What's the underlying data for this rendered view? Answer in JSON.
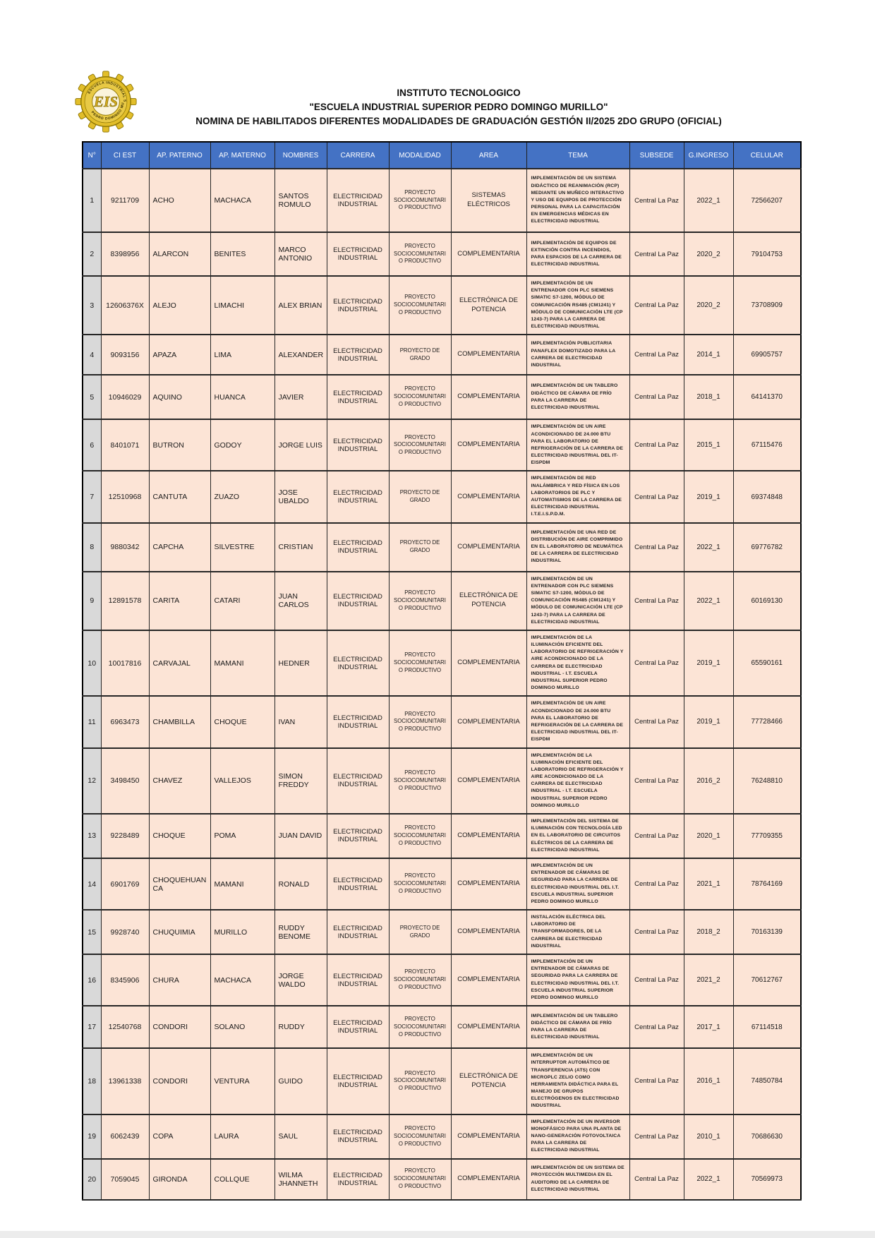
{
  "header": {
    "line1": "INSTITUTO TECNOLOGICO",
    "line2": "\"ESCUELA INDUSTRIAL SUPERIOR PEDRO DOMINGO MURILLO\"",
    "line3": "NOMINA DE HABILITADOS DIFERENTES MODALIDADES DE GRADUACIÓN GESTIÓN II/2025  2DO GRUPO (OFICIAL)",
    "logo": {
      "ring_text_top": "ESCUELA INDUSTRIAL SUPERIOR",
      "ring_text_bottom": "PEDRO DOMINGO MURILLO",
      "monogram": "EIS"
    }
  },
  "colors": {
    "header_bg": "#4472C4",
    "row_bg": "#FCE4D6",
    "num_col_bg": "#D9D9D9",
    "logo_gold": "#E2BE2A"
  },
  "table": {
    "columns": [
      "N°",
      "CI EST",
      "AP. PATERNO",
      "AP. MATERNO",
      "NOMBRES",
      "CARRERA",
      "MODALIDAD",
      "AREA",
      "TEMA",
      "SUBSEDE",
      "G.INGRESO",
      "CELULAR"
    ],
    "rows": [
      {
        "n": "1",
        "ci": "9211709",
        "paterno": "ACHO",
        "materno": "MACHACA",
        "nombres": "SANTOS ROMULO",
        "carrera": "ELECTRICIDAD INDUSTRIAL",
        "modalidad": "PROYECTO SOCIOCOMUNITARIO PRODUCTIVO",
        "area": "SISTEMAS ELÉCTRICOS",
        "tema": "IMPLEMENTACIÓN DE UN SISTEMA DIDÁCTICO DE REANIMACIÓN (RCP) MEDIANTE UN MUÑECO INTERACTIVO Y USO DE EQUIPOS DE PROTECCIÓN PERSONAL PARA LA CAPACITACIÓN EN EMERGENCIAS MÉDICAS EN ELECTRICIDAD INDUSTRIAL",
        "subsede": "Central La Paz",
        "ingreso": "2022_1",
        "celular": "72566207"
      },
      {
        "n": "2",
        "ci": "8398956",
        "paterno": "ALARCON",
        "materno": "BENITES",
        "nombres": "MARCO ANTONIO",
        "carrera": "ELECTRICIDAD INDUSTRIAL",
        "modalidad": "PROYECTO SOCIOCOMUNITARIO PRODUCTIVO",
        "area": "COMPLEMENTARIA",
        "tema": "IMPLEMENTACIÓN DE EQUIPOS DE EXTINCIÓN CONTRA INCENDIOS, PARA ESPACIOS DE LA CARRERA DE ELECTRICIDAD INDUSTRIAL",
        "subsede": "Central La Paz",
        "ingreso": "2020_2",
        "celular": "79104753"
      },
      {
        "n": "3",
        "ci": "12606376X",
        "paterno": "ALEJO",
        "materno": "LIMACHI",
        "nombres": "ALEX BRIAN",
        "carrera": "ELECTRICIDAD INDUSTRIAL",
        "modalidad": "PROYECTO SOCIOCOMUNITARIO PRODUCTIVO",
        "area": "ELECTRÓNICA DE POTENCIA",
        "tema": "IMPLEMENTACIÓN DE UN ENTRENADOR CON PLC SIEMENS SIMATIC S7-1200, MÓDULO DE COMUNICACIÓN RS485 (CM1241) Y MÓDULO DE COMUNICACIÓN LTE (CP 1243-7) PARA LA CARRERA DE ELECTRICIDAD INDUSTRIAL",
        "subsede": "Central La Paz",
        "ingreso": "2020_2",
        "celular": "73708909"
      },
      {
        "n": "4",
        "ci": "9093156",
        "paterno": "APAZA",
        "materno": "LIMA",
        "nombres": "ALEXANDER",
        "carrera": "ELECTRICIDAD INDUSTRIAL",
        "modalidad": "PROYECTO DE GRADO",
        "area": "COMPLEMENTARIA",
        "tema": "IMPLEMENTACIÓN PUBLICITARIA PANAFLEX DOMOTIZADO PARA LA CARRERA DE ELECTRICIDAD INDUSTRIAL",
        "subsede": "Central La Paz",
        "ingreso": "2014_1",
        "celular": "69905757"
      },
      {
        "n": "5",
        "ci": "10946029",
        "paterno": "AQUINO",
        "materno": "HUANCA",
        "nombres": "JAVIER",
        "carrera": "ELECTRICIDAD INDUSTRIAL",
        "modalidad": "PROYECTO SOCIOCOMUNITARIO PRODUCTIVO",
        "area": "COMPLEMENTARIA",
        "tema": "IMPLEMENTACIÓN DE UN TABLERO DIDÁCTICO DE CÁMARA DE FRÍO PARA LA CARRERA DE ELECTRICIDAD INDUSTRIAL",
        "subsede": "Central La Paz",
        "ingreso": "2018_1",
        "celular": "64141370"
      },
      {
        "n": "6",
        "ci": "8401071",
        "paterno": "BUTRON",
        "materno": "GODOY",
        "nombres": "JORGE LUIS",
        "carrera": "ELECTRICIDAD INDUSTRIAL",
        "modalidad": "PROYECTO SOCIOCOMUNITARIO PRODUCTIVO",
        "area": "COMPLEMENTARIA",
        "tema": "IMPLEMENTACIÓN DE UN AIRE ACONDICIONADO DE 24.000 BTU PARA EL LABORATORIO DE REFRIGERACIÓN DE LA CARRERA DE ELECTRICIDAD INDUSTRIAL DEL IT- EISPDM",
        "subsede": "Central La Paz",
        "ingreso": "2015_1",
        "celular": "67115476"
      },
      {
        "n": "7",
        "ci": "12510968",
        "paterno": "CANTUTA",
        "materno": "ZUAZO",
        "nombres": "JOSE UBALDO",
        "carrera": "ELECTRICIDAD INDUSTRIAL",
        "modalidad": "PROYECTO DE GRADO",
        "area": "COMPLEMENTARIA",
        "tema": "IMPLEMENTACIÓN DE RED INALÁMBRICA Y RED FÍSICA EN LOS LABORATORIOS DE PLC Y AUTOMATISMOS DE LA CARRERA DE ELECTRICIDAD INDUSTRIAL I.T.E.I.S.P.D.M.",
        "subsede": "Central La Paz",
        "ingreso": "2019_1",
        "celular": "69374848"
      },
      {
        "n": "8",
        "ci": "9880342",
        "paterno": "CAPCHA",
        "materno": "SILVESTRE",
        "nombres": "CRISTIAN",
        "carrera": "ELECTRICIDAD INDUSTRIAL",
        "modalidad": "PROYECTO DE GRADO",
        "area": "COMPLEMENTARIA",
        "tema": "IMPLEMENTACIÓN DE UNA RED DE DISTRIBUCIÓN DE AIRE COMPRIMIDO EN EL LABORATORIO DE NEUMÁTICA DE LA CARRERA DE ELECTRICIDAD INDUSTRIAL",
        "subsede": "Central La Paz",
        "ingreso": "2022_1",
        "celular": "69776782"
      },
      {
        "n": "9",
        "ci": "12891578",
        "paterno": "CARITA",
        "materno": "CATARI",
        "nombres": "JUAN CARLOS",
        "carrera": "ELECTRICIDAD INDUSTRIAL",
        "modalidad": "PROYECTO SOCIOCOMUNITARIO PRODUCTIVO",
        "area": "ELECTRÓNICA DE POTENCIA",
        "tema": "IMPLEMENTACIÓN DE UN ENTRENADOR CON PLC SIEMENS SIMATIC S7-1200, MÓDULO DE COMUNICACIÓN RS485 (CM1241) Y MÓDULO DE COMUNICACIÓN LTE (CP 1243-7) PARA LA CARRERA DE ELECTRICIDAD INDUSTRIAL",
        "subsede": "Central La Paz",
        "ingreso": "2022_1",
        "celular": "60169130"
      },
      {
        "n": "10",
        "ci": "10017816",
        "paterno": "CARVAJAL",
        "materno": "MAMANI",
        "nombres": "HEDNER",
        "carrera": "ELECTRICIDAD INDUSTRIAL",
        "modalidad": "PROYECTO SOCIOCOMUNITARIO PRODUCTIVO",
        "area": "COMPLEMENTARIA",
        "tema": "IMPLEMENTACIÓN DE LA ILUMINACIÓN EFICIENTE DEL LABORATORIO DE REFRIGERACIÓN Y AIRE ACONDICIONADO DE LA CARRERA DE ELECTRICIDAD INDUSTRIAL - I.T. ESCUELA INDUSTRIAL SUPERIOR PEDRO DOMINGO MURILLO",
        "subsede": "Central La Paz",
        "ingreso": "2019_1",
        "celular": "65590161"
      },
      {
        "n": "11",
        "ci": "6963473",
        "paterno": "CHAMBILLA",
        "materno": "CHOQUE",
        "nombres": "IVAN",
        "carrera": "ELECTRICIDAD INDUSTRIAL",
        "modalidad": "PROYECTO SOCIOCOMUNITARIO PRODUCTIVO",
        "area": "COMPLEMENTARIA",
        "tema": "IMPLEMENTACIÓN DE UN AIRE ACONDICIONADO DE 24.000 BTU PARA EL LABORATORIO DE REFRIGERACIÓN DE LA CARRERA DE ELECTRICIDAD INDUSTRIAL DEL IT- EISPDM",
        "subsede": "Central La Paz",
        "ingreso": "2019_1",
        "celular": "77728466"
      },
      {
        "n": "12",
        "ci": "3498450",
        "paterno": "CHAVEZ",
        "materno": "VALLEJOS",
        "nombres": "SIMON FREDDY",
        "carrera": "ELECTRICIDAD INDUSTRIAL",
        "modalidad": "PROYECTO SOCIOCOMUNITARIO PRODUCTIVO",
        "area": "COMPLEMENTARIA",
        "tema": "IMPLEMENTACIÓN DE LA ILUMINACIÓN EFICIENTE DEL LABORATORIO DE REFRIGERACIÓN Y AIRE ACONDICIONADO DE LA CARRERA DE ELECTRICIDAD INDUSTRIAL - I.T. ESCUELA INDUSTRIAL SUPERIOR PEDRO DOMINGO MURILLO",
        "subsede": "Central La Paz",
        "ingreso": "2016_2",
        "celular": "76248810"
      },
      {
        "n": "13",
        "ci": "9228489",
        "paterno": "CHOQUE",
        "materno": "POMA",
        "nombres": "JUAN DAVID",
        "carrera": "ELECTRICIDAD INDUSTRIAL",
        "modalidad": "PROYECTO SOCIOCOMUNITARIO PRODUCTIVO",
        "area": "COMPLEMENTARIA",
        "tema": "IMPLEMENTACIÓN DEL SISTEMA DE ILUMINACIÓN CON TECNOLOGÍA LED EN EL LABORATORIO DE CIRCUITOS ELÉCTRICOS DE LA CARRERA DE ELECTRICIDAD INDUSTRIAL",
        "subsede": "Central La Paz",
        "ingreso": "2020_1",
        "celular": "77709355"
      },
      {
        "n": "14",
        "ci": "6901769",
        "paterno": "CHOQUEHUANCA",
        "materno": "MAMANI",
        "nombres": "RONALD",
        "carrera": "ELECTRICIDAD INDUSTRIAL",
        "modalidad": "PROYECTO SOCIOCOMUNITARIO PRODUCTIVO",
        "area": "COMPLEMENTARIA",
        "tema": "IMPLEMENTACIÓN DE UN ENTRENADOR DE CÁMARAS DE SEGURIDAD PARA LA CARRERA DE ELECTRICIDAD INDUSTRIAL DEL I.T. ESCUELA INDUSTRIAL SUPERIOR PEDRO DOMINGO MURILLO",
        "subsede": "Central La Paz",
        "ingreso": "2021_1",
        "celular": "78764169"
      },
      {
        "n": "15",
        "ci": "9928740",
        "paterno": "CHUQUIMIA",
        "materno": "MURILLO",
        "nombres": "RUDDY BENOME",
        "carrera": "ELECTRICIDAD INDUSTRIAL",
        "modalidad": "PROYECTO DE GRADO",
        "area": "COMPLEMENTARIA",
        "tema": "INSTALACIÓN ELÉCTRICA DEL LABORATORIO DE TRANSFORMADORES, DE LA CARRERA DE ELECTRICIDAD INDUSTRIAL",
        "subsede": "Central La Paz",
        "ingreso": "2018_2",
        "celular": "70163139"
      },
      {
        "n": "16",
        "ci": "8345906",
        "paterno": "CHURA",
        "materno": "MACHACA",
        "nombres": "JORGE WALDO",
        "carrera": "ELECTRICIDAD INDUSTRIAL",
        "modalidad": "PROYECTO SOCIOCOMUNITARIO PRODUCTIVO",
        "area": "COMPLEMENTARIA",
        "tema": "IMPLEMENTACIÓN DE UN ENTRENADOR DE CÁMARAS DE SEGURIDAD PARA LA CARRERA DE ELECTRICIDAD INDUSTRIAL DEL I.T. ESCUELA INDUSTRIAL SUPERIOR PEDRO DOMINGO MURILLO",
        "subsede": "Central La Paz",
        "ingreso": "2021_2",
        "celular": "70612767"
      },
      {
        "n": "17",
        "ci": "12540768",
        "paterno": "CONDORI",
        "materno": "SOLANO",
        "nombres": "RUDDY",
        "carrera": "ELECTRICIDAD INDUSTRIAL",
        "modalidad": "PROYECTO SOCIOCOMUNITARIO PRODUCTIVO",
        "area": "COMPLEMENTARIA",
        "tema": "IMPLEMENTACIÓN DE UN TABLERO DIDÁCTICO DE CÁMARA DE FRÍO PARA LA CARRERA DE ELECTRICIDAD INDUSTRIAL",
        "subsede": "Central La Paz",
        "ingreso": "2017_1",
        "celular": "67114518"
      },
      {
        "n": "18",
        "ci": "13961338",
        "paterno": "CONDORI",
        "materno": "VENTURA",
        "nombres": "GUIDO",
        "carrera": "ELECTRICIDAD INDUSTRIAL",
        "modalidad": "PROYECTO SOCIOCOMUNITARIO PRODUCTIVO",
        "area": "ELECTRÓNICA DE POTENCIA",
        "tema": "IMPLEMENTACIÓN DE UN INTERRUPTOR AUTOMÁTICO DE TRANSFERENCIA (ATS) CON MICROPLC ZELIO COMO HERRAMIENTA DIDÁCTICA PARA EL MANEJO DE GRUPOS ELECTRÓGENOS EN ELECTRICIDAD INDUSTRIAL",
        "subsede": "Central La Paz",
        "ingreso": "2016_1",
        "celular": "74850784"
      },
      {
        "n": "19",
        "ci": "6062439",
        "paterno": "COPA",
        "materno": "LAURA",
        "nombres": "SAUL",
        "carrera": "ELECTRICIDAD INDUSTRIAL",
        "modalidad": "PROYECTO SOCIOCOMUNITARIO PRODUCTIVO",
        "area": "COMPLEMENTARIA",
        "tema": "IMPLEMENTACIÓN DE UN INVERSOR MONOFÁSICO PARA UNA PLANTA DE NANO-GENERACIÓN FOTOVOLTAICA PARA LA CARRERA DE ELECTRICIDAD INDUSTRIAL",
        "subsede": "Central La Paz",
        "ingreso": "2010_1",
        "celular": "70686630"
      },
      {
        "n": "20",
        "ci": "7059045",
        "paterno": "GIRONDA",
        "materno": "COLLQUE",
        "nombres": "WILMA JHANNETH",
        "carrera": "ELECTRICIDAD INDUSTRIAL",
        "modalidad": "PROYECTO SOCIOCOMUNITARIO PRODUCTIVO",
        "area": "COMPLEMENTARIA",
        "tema": "IMPLEMENTACIÓN DE UN SISTEMA DE PROYECCIÓN MULTIMEDIA EN EL AUDITORIO DE LA CARRERA DE ELECTRICIDAD INDUSTRIAL",
        "subsede": "Central La Paz",
        "ingreso": "2022_1",
        "celular": "70569973"
      }
    ]
  }
}
